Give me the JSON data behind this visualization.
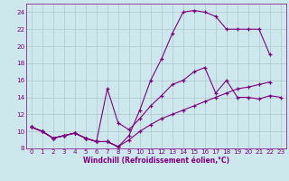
{
  "xlabel": "Windchill (Refroidissement éolien,°C)",
  "background_color": "#cde8ec",
  "line_color": "#800080",
  "grid_color": "#b0c8cc",
  "xlim": [
    -0.5,
    23.5
  ],
  "ylim": [
    8,
    25
  ],
  "yticks": [
    8,
    10,
    12,
    14,
    16,
    18,
    20,
    22,
    24
  ],
  "xticks": [
    0,
    1,
    2,
    3,
    4,
    5,
    6,
    7,
    8,
    9,
    10,
    11,
    12,
    13,
    14,
    15,
    16,
    17,
    18,
    19,
    20,
    21,
    22,
    23
  ],
  "series": [
    {
      "x": [
        0,
        1,
        2,
        3,
        4,
        5,
        6,
        7,
        8
      ],
      "y": [
        10.5,
        10.0,
        9.2,
        9.5,
        9.8,
        9.2,
        8.8,
        8.8,
        8.2
      ]
    },
    {
      "x": [
        0,
        1,
        2,
        3,
        4,
        5,
        6,
        7,
        8,
        9,
        10,
        11,
        12,
        13,
        14,
        15,
        16,
        17,
        18,
        19,
        20,
        21,
        22
      ],
      "y": [
        10.5,
        10.0,
        9.2,
        9.5,
        9.8,
        9.2,
        8.8,
        8.8,
        8.2,
        9.0,
        10.0,
        10.8,
        11.5,
        12.0,
        12.5,
        13.0,
        13.5,
        14.0,
        14.5,
        15.0,
        15.2,
        15.5,
        15.8
      ]
    },
    {
      "x": [
        0,
        1,
        2,
        3,
        4,
        5,
        6,
        7,
        8,
        9,
        10,
        11,
        12,
        13,
        14,
        15,
        16,
        17,
        18,
        19,
        20,
        21,
        22,
        23
      ],
      "y": [
        10.5,
        10.0,
        9.2,
        9.5,
        9.8,
        9.2,
        8.8,
        15.0,
        11.0,
        10.2,
        11.5,
        13.0,
        14.2,
        15.5,
        16.0,
        17.0,
        17.5,
        14.5,
        16.0,
        14.0,
        14.0,
        13.8,
        14.2,
        14.0
      ]
    },
    {
      "x": [
        0,
        1,
        2,
        3,
        4,
        5,
        6,
        7,
        8,
        9,
        10,
        11,
        12,
        13,
        14,
        15,
        16,
        17,
        18,
        19,
        20,
        21,
        22,
        23
      ],
      "y": [
        10.5,
        10.0,
        9.2,
        9.5,
        9.8,
        9.2,
        8.8,
        8.8,
        8.2,
        9.5,
        12.5,
        16.0,
        18.5,
        21.5,
        24.0,
        24.2,
        24.0,
        23.5,
        22.0,
        22.0,
        22.0,
        22.0,
        19.0,
        null
      ]
    }
  ]
}
